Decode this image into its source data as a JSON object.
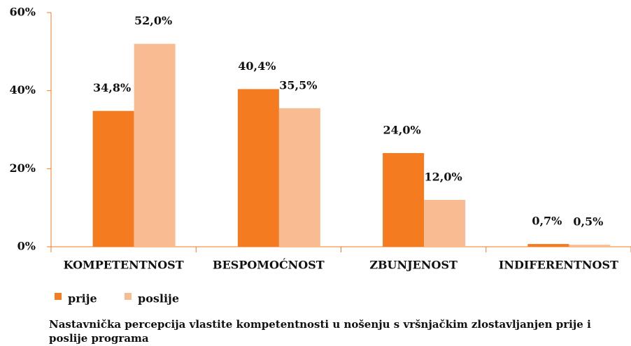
{
  "chart_data": {
    "type": "bar",
    "title": "Nastavnička percepcija vlastite kompetentnosti u nošenju s vršnjačkim zlostavljanjen prije i poslije programa",
    "categories": [
      "KOMPETENTNOST",
      "BESPOMOĆNOST",
      "ZBUNJENOST",
      "INDIFERENTNOST"
    ],
    "series": [
      {
        "name": "prije",
        "color": "#f47b20",
        "values": [
          34.8,
          40.4,
          24.0,
          0.7
        ],
        "value_labels": [
          "34,8%",
          "40,4%",
          "24,0%",
          "0,7%"
        ]
      },
      {
        "name": "poslije",
        "color": "#f9bc92",
        "values": [
          52.0,
          35.5,
          12.0,
          0.5
        ],
        "value_labels": [
          "52,0%",
          "35,5%",
          "12,0%",
          "0,5%"
        ]
      }
    ],
    "ylim": [
      0,
      60
    ],
    "yticks": [
      {
        "value": 0,
        "label": "0%"
      },
      {
        "value": 20,
        "label": "20%"
      },
      {
        "value": 40,
        "label": "40%"
      },
      {
        "value": 60,
        "label": "60%"
      }
    ],
    "grid": false
  }
}
